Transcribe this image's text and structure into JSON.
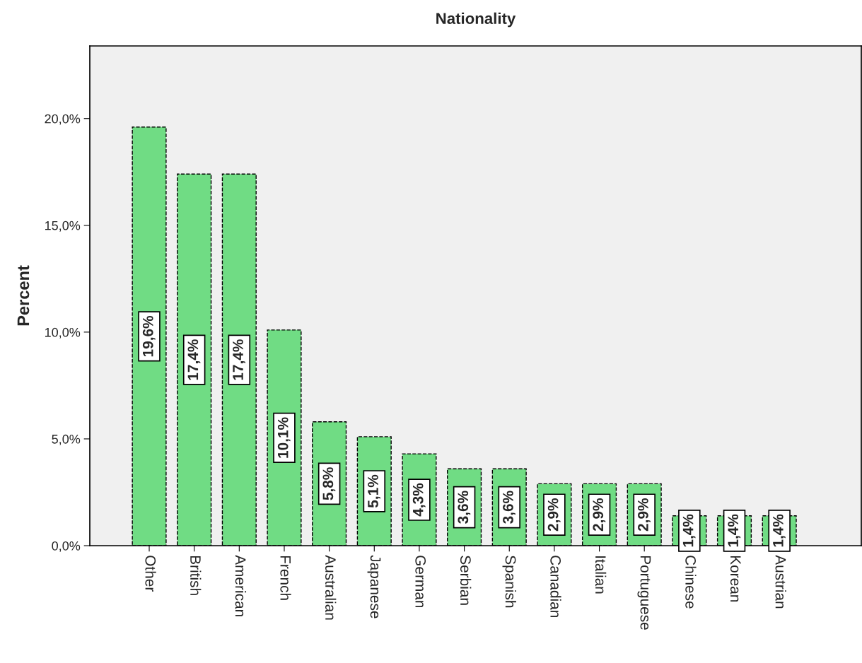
{
  "chart_data": {
    "type": "bar",
    "title": "Nationality",
    "ylabel": "Percent",
    "categories": [
      "Other",
      "British",
      "American",
      "French",
      "Australian",
      "Japanese",
      "German",
      "Serbian",
      "Spanish",
      "Canadian",
      "Italian",
      "Portuguese",
      "Chinese",
      "Korean",
      "Austrian"
    ],
    "values": [
      19.6,
      17.4,
      17.4,
      10.1,
      5.8,
      5.1,
      4.3,
      3.6,
      3.6,
      2.9,
      2.9,
      2.9,
      1.4,
      1.4,
      1.4
    ],
    "value_labels": [
      "19,6%",
      "17,4%",
      "17,4%",
      "10,1%",
      "5,8%",
      "5,1%",
      "4,3%",
      "3,6%",
      "3,6%",
      "2,9%",
      "2,9%",
      "2,9%",
      "1,4%",
      "1,4%",
      "1,4%"
    ],
    "color": "#70dc84",
    "ylim": [
      0,
      23.4
    ],
    "yticks": [
      {
        "value": 0,
        "label": "0,0%"
      },
      {
        "value": 5,
        "label": "5,0%"
      },
      {
        "value": 10,
        "label": "10,0%"
      },
      {
        "value": 15,
        "label": "15,0%"
      },
      {
        "value": 20,
        "label": "20,0%"
      }
    ],
    "grid": false,
    "legend": false
  }
}
